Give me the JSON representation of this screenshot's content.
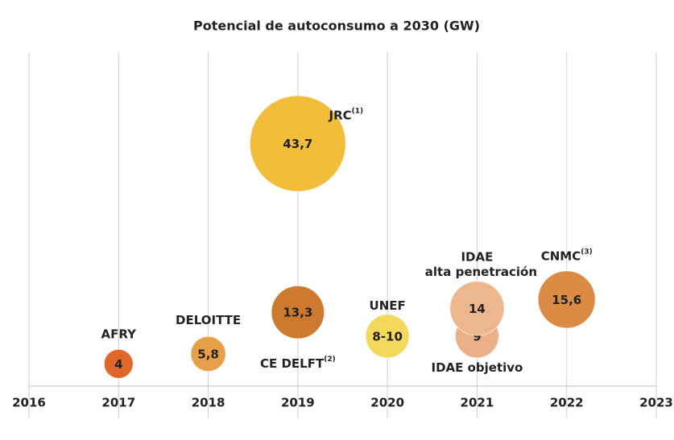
{
  "chart_data": {
    "type": "bubble",
    "title": "Potencial de autoconsumo a 2030 (GW)",
    "xlim": [
      2016,
      2023
    ],
    "xticks": [
      2016,
      2017,
      2018,
      2019,
      2020,
      2021,
      2022,
      2023
    ],
    "ylim": [
      0,
      50
    ],
    "grid": true,
    "points": [
      {
        "name": "AFRY",
        "x": 2017,
        "value": 4,
        "color": "#e0672a"
      },
      {
        "name": "DELOITTE",
        "x": 2018,
        "value": 5.8,
        "value_label": "5,8",
        "color": "#e8a048"
      },
      {
        "name": "CE DELFT",
        "note": "(2)",
        "x": 2019,
        "value": 13.3,
        "value_label": "13,3",
        "color": "#cd7a2f"
      },
      {
        "name": "JRC",
        "note": "(1)",
        "x": 2019,
        "value": 43.7,
        "value_label": "43,7",
        "color": "#f3bd3c"
      },
      {
        "name": "UNEF",
        "x": 2020,
        "value": 9,
        "value_label": "8-10",
        "color": "#f4d85c"
      },
      {
        "name": "IDAE objetivo",
        "x": 2021,
        "value": 9,
        "color": "#ebb086"
      },
      {
        "name": "IDAE",
        "detail": "alta penetración",
        "x": 2021,
        "value": 14,
        "color": "#eeb68c"
      },
      {
        "name": "CNMC",
        "note": "(3)",
        "x": 2022,
        "value": 15.6,
        "value_label": "15,6",
        "color": "#dc8b44"
      }
    ]
  }
}
